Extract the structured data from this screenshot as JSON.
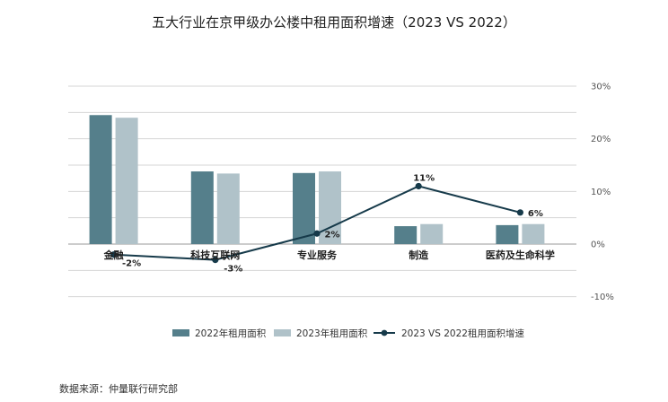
{
  "chart_data": {
    "type": "bar",
    "title": "五大行业在京甲级办公楼中租用面积增速（2023 VS 2022）",
    "categories": [
      "金融",
      "科技互联网",
      "专业服务",
      "制造",
      "医药及生命科学"
    ],
    "series": [
      {
        "name": "2022年租用面积",
        "kind": "bar",
        "axis": "left",
        "color": "#557f8b",
        "values": [
          24.5,
          13.8,
          13.5,
          3.4,
          3.6
        ]
      },
      {
        "name": "2023年租用面积",
        "kind": "bar",
        "axis": "left",
        "color": "#b0c2c9",
        "values": [
          24.0,
          13.4,
          13.8,
          3.8,
          3.8
        ]
      },
      {
        "name": "2023 VS 2022租用面积增速",
        "kind": "line",
        "axis": "right",
        "color": "#163a4a",
        "values": [
          -2,
          -3,
          2,
          11,
          6
        ],
        "labels": [
          "-2%",
          "-3%",
          "2%",
          "11%",
          "6%"
        ]
      }
    ],
    "y2_ticks": [
      "30%",
      "20%",
      "10%",
      "0%",
      "-10%"
    ],
    "y2_range": [
      -10,
      30
    ],
    "legend_position": "bottom"
  },
  "source": "数据来源：仲量联行研究部"
}
